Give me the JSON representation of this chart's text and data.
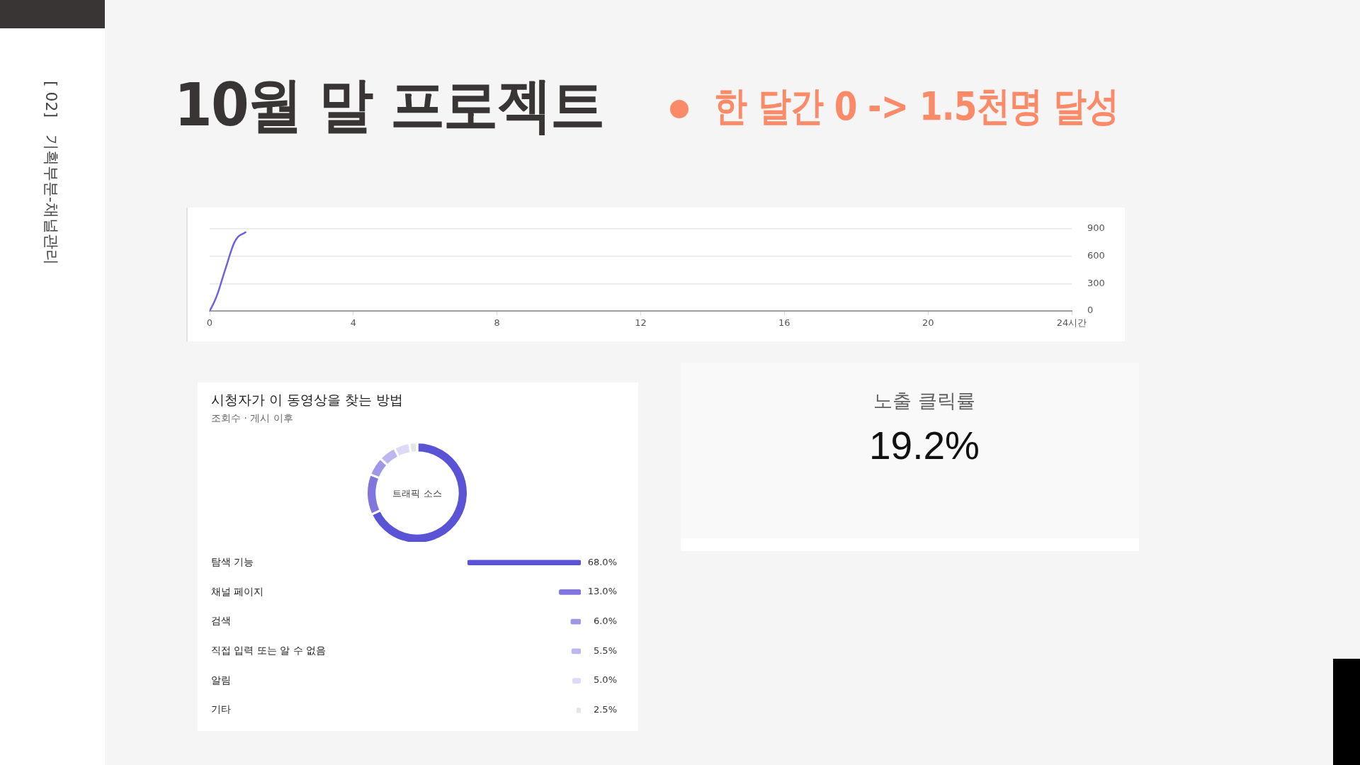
{
  "chart_data": [
    {
      "type": "line",
      "title": "10월 말 프로젝트",
      "subtitle": "한 달간 0 -> 1.5천명 달성",
      "annotations": [
        "[ 02]",
        "기획부분-채널관리"
      ],
      "x": [
        0,
        0.13,
        0.24,
        0.35,
        0.48,
        0.6,
        0.69,
        0.79,
        0.93,
        1
      ],
      "series": [
        {
          "color": "#6b63dd",
          "values": [
            0,
            100,
            210,
            350,
            510,
            660,
            750,
            810,
            845,
            860
          ]
        }
      ],
      "xlim": [
        0,
        24
      ],
      "xticks": [
        0,
        4,
        8,
        12,
        16,
        20,
        {
          "value": 24,
          "label": "24시간"
        }
      ],
      "ylim": [
        0,
        900
      ],
      "yticks": [
        0,
        300,
        600,
        900
      ],
      "grid": "y"
    },
    {
      "type": "donut",
      "title": "시청자가 이 동영상을 찾는 방법",
      "subtitle": "조회수 · 게시 이후",
      "annotations": [
        "트래픽 소스"
      ],
      "categories": [
        null,
        null,
        null,
        null,
        null,
        null
      ],
      "values": [
        68,
        13,
        6,
        5.5,
        5,
        2.5
      ],
      "colors": [
        "#5b53d6",
        "#7f77de",
        "#9f98e6",
        "#bcb7ef",
        "#dcdaf6",
        "#e5e5e5"
      ]
    },
    {
      "type": "bar",
      "orientation": "horizontal",
      "categories": [
        "탐색 기능",
        "채널 페이지",
        "검색",
        "직접 입력 또는 알 수 없음",
        "알림",
        "기타"
      ],
      "values": [
        68,
        13,
        6,
        5.5,
        5,
        2.5
      ],
      "colors": [
        "#5b53d6",
        "#7f77de",
        "#9f98e6",
        "#bcb7ef",
        "#dcdaf6",
        "#e5e5e5"
      ],
      "value_labels": [
        "68.0%",
        "13.0%",
        "6.0%",
        "5.5%",
        "5.0%",
        "2.5%"
      ],
      "xlim": [
        68,
        0
      ],
      "tick_labels": "y"
    },
    {
      "type": "other",
      "title": "노출 클릭률",
      "annotations": [
        "19.2%"
      ]
    }
  ]
}
